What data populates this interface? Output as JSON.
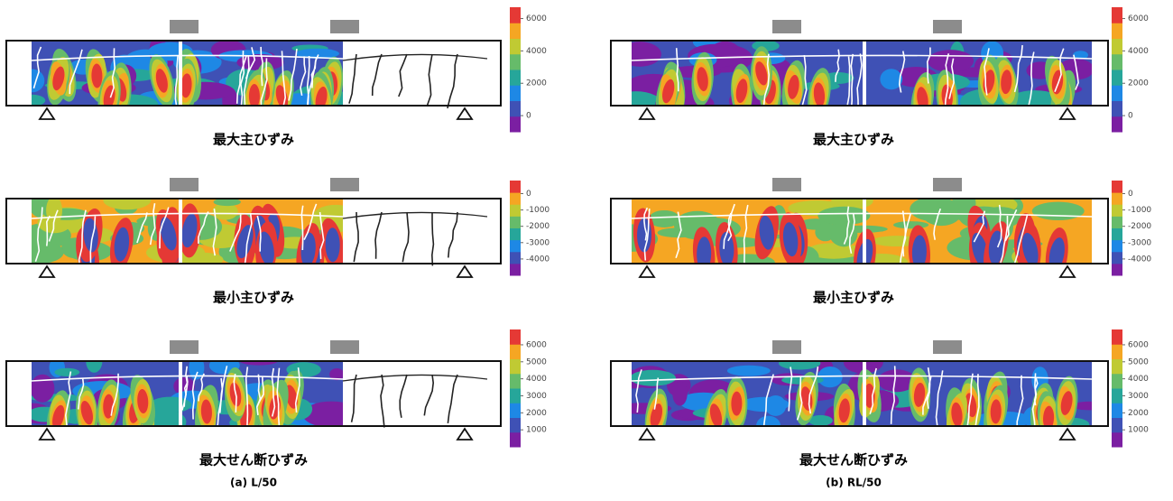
{
  "colormap": [
    "#7b1fa2",
    "#3f51b5",
    "#1e88e5",
    "#26a69a",
    "#66bb6a",
    "#c0ca33",
    "#f5a623",
    "#e53935"
  ],
  "columns": [
    {
      "caption": "(a) L/50",
      "panels": [
        {
          "title": "最大主ひずみ",
          "colorbar": {
            "range": [
              -1000,
              6700
            ],
            "ticks": [
              0,
              2000,
              4000,
              6000
            ]
          }
        },
        {
          "title": "最小主ひずみ",
          "colorbar": {
            "range": [
              -5000,
              800
            ],
            "ticks": [
              -4000,
              -3000,
              -2000,
              -1000,
              0
            ]
          }
        },
        {
          "title": "最大せん断ひずみ",
          "colorbar": {
            "range": [
              0,
              6900
            ],
            "ticks": [
              1000,
              2000,
              3000,
              4000,
              5000,
              6000
            ]
          }
        }
      ]
    },
    {
      "caption": "(b) RL/50",
      "panels": [
        {
          "title": "最大主ひずみ",
          "colorbar": {
            "range": [
              -1000,
              6700
            ],
            "ticks": [
              0,
              2000,
              4000,
              6000
            ]
          }
        },
        {
          "title": "最小主ひずみ",
          "colorbar": {
            "range": [
              -5000,
              800
            ],
            "ticks": [
              -4000,
              -3000,
              -2000,
              -1000,
              0
            ]
          }
        },
        {
          "title": "最大せん断ひずみ",
          "colorbar": {
            "range": [
              0,
              6900
            ],
            "ticks": [
              1000,
              2000,
              3000,
              4000,
              5000,
              6000
            ]
          }
        }
      ]
    }
  ]
}
